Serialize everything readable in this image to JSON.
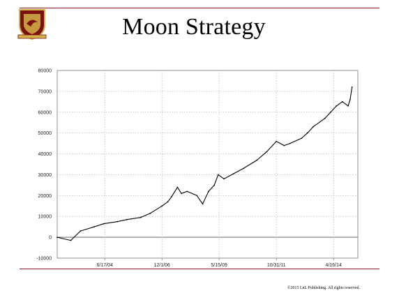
{
  "slide": {
    "title": "Moon Strategy",
    "copyright": "©2015 LnL Publishing.  All rights reserved.",
    "accent_color": "#8b1a1a"
  },
  "logo": {
    "icon": "crest-icon",
    "colors": [
      "#7a1010",
      "#d4b24a"
    ]
  },
  "chart_data": {
    "type": "line",
    "title": "",
    "xlabel": "",
    "ylabel": "",
    "ylim": [
      -10000,
      80000
    ],
    "yticks": [
      -10000,
      0,
      10000,
      20000,
      30000,
      40000,
      50000,
      60000,
      70000,
      80000
    ],
    "xticks": [
      "6/17/04",
      "12/1/06",
      "5/15/09",
      "10/31/11",
      "4/16/14"
    ],
    "grid": true,
    "legend": "none",
    "line_color": "#000000",
    "x": [
      "2002-06",
      "2003-01",
      "2003-06",
      "2004-01",
      "2004-06",
      "2005-01",
      "2005-06",
      "2006-01",
      "2006-06",
      "2006-12",
      "2007-03",
      "2007-05",
      "2007-08",
      "2007-10",
      "2008-01",
      "2008-06",
      "2008-09",
      "2008-12",
      "2009-03",
      "2009-05",
      "2009-08",
      "2010-01",
      "2010-06",
      "2011-01",
      "2011-06",
      "2011-11",
      "2012-03",
      "2012-06",
      "2012-12",
      "2013-03",
      "2013-06",
      "2013-12",
      "2014-03",
      "2014-06",
      "2014-09",
      "2014-12",
      "2015-01",
      "2015-02"
    ],
    "y": [
      0,
      -1500,
      3000,
      5000,
      6500,
      7500,
      8500,
      9500,
      11500,
      15000,
      17000,
      19500,
      24000,
      21000,
      22000,
      20000,
      16000,
      22000,
      25000,
      30000,
      28000,
      30500,
      33000,
      37000,
      41000,
      46000,
      44000,
      45000,
      47500,
      50000,
      53000,
      57000,
      60000,
      63000,
      65000,
      63000,
      66000,
      72000
    ],
    "x_start": "2002-06",
    "x_end": "2015-05"
  }
}
